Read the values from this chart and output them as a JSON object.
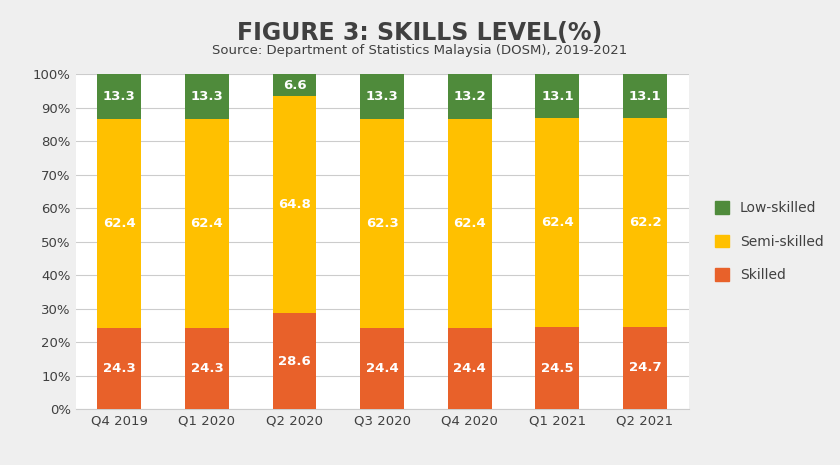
{
  "title": "FIGURE 3: SKILLS LEVEL(%)",
  "subtitle": "Source: Department of Statistics Malaysia (DOSM), 2019-2021",
  "categories": [
    "Q4 2019",
    "Q1 2020",
    "Q2 2020",
    "Q3 2020",
    "Q4 2020",
    "Q1 2021",
    "Q2 2021"
  ],
  "skilled": [
    24.3,
    24.3,
    28.6,
    24.4,
    24.4,
    24.5,
    24.7
  ],
  "semi_skilled": [
    62.4,
    62.4,
    64.8,
    62.3,
    62.4,
    62.4,
    62.2
  ],
  "low_skilled": [
    13.3,
    13.3,
    6.6,
    13.3,
    13.2,
    13.1,
    13.1
  ],
  "color_skilled": "#E8612A",
  "color_semi_skilled": "#FFC000",
  "color_low_skilled": "#4F8B3B",
  "legend_labels": [
    "Low-skilled",
    "Semi-skilled",
    "Skilled"
  ],
  "ylim": [
    0,
    100
  ],
  "ytick_labels": [
    "0%",
    "10%",
    "20%",
    "30%",
    "40%",
    "50%",
    "60%",
    "70%",
    "80%",
    "90%",
    "100%"
  ],
  "ytick_values": [
    0,
    10,
    20,
    30,
    40,
    50,
    60,
    70,
    80,
    90,
    100
  ],
  "bar_width": 0.5,
  "title_fontsize": 17,
  "subtitle_fontsize": 9.5,
  "label_fontsize": 9.5,
  "legend_fontsize": 10,
  "background_color": "#EFEFEF",
  "plot_background": "#FFFFFF",
  "grid_color": "#CCCCCC",
  "title_color": "#404040",
  "tick_color": "#404040"
}
